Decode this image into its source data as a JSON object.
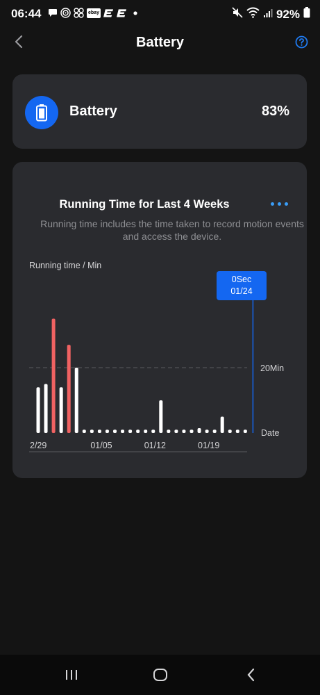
{
  "status_bar": {
    "time": "06:44",
    "battery_percent": "92%",
    "icons": [
      "chat-bubble-icon",
      "target-icon",
      "pinwheel-icon",
      "ebay-icon",
      "app-e-icon",
      "app-e-icon",
      "dot-icon",
      "mute-icon",
      "wifi-icon",
      "signal-icon",
      "battery-icon"
    ],
    "ebay_text": "ebay"
  },
  "header": {
    "title": "Battery",
    "back_icon": "chevron-left-icon",
    "help_icon": "question-circle-icon"
  },
  "battery_card": {
    "label": "Battery",
    "value": "83%"
  },
  "chart_card": {
    "title": "Running Time for Last 4 Weeks",
    "subtitle": "Running time includes the time taken to record motion events and access the device.",
    "more_icon": "more-horizontal-icon",
    "tooltip_value": "0Sec",
    "tooltip_date": "01/24"
  },
  "chart_data": {
    "type": "bar",
    "ylabel": "Running time / Min",
    "xlabel": "Date",
    "reference_line_label": "20Min",
    "reference_line_value": 20,
    "x_tick_labels": [
      "2/29",
      "01/05",
      "01/12",
      "01/19"
    ],
    "x_tick_index": [
      0,
      7,
      14,
      21
    ],
    "ylim": [
      0,
      40
    ],
    "colors": {
      "normal": "#ffffff",
      "high": "#f06262",
      "reference": "#5a5b5f",
      "selected": "#1467f1"
    },
    "values": [
      14,
      15,
      35,
      14,
      27,
      20,
      1,
      1,
      1,
      1,
      1,
      1,
      1,
      1,
      1,
      1,
      10,
      1,
      1,
      1,
      1,
      1.5,
      1,
      1,
      5,
      1,
      1,
      1
    ],
    "highlighted": [
      2,
      4
    ],
    "selected_index": 28
  },
  "system_nav": {
    "recents_icon": "recents-icon",
    "home_icon": "home-icon",
    "back_icon": "back-icon"
  }
}
